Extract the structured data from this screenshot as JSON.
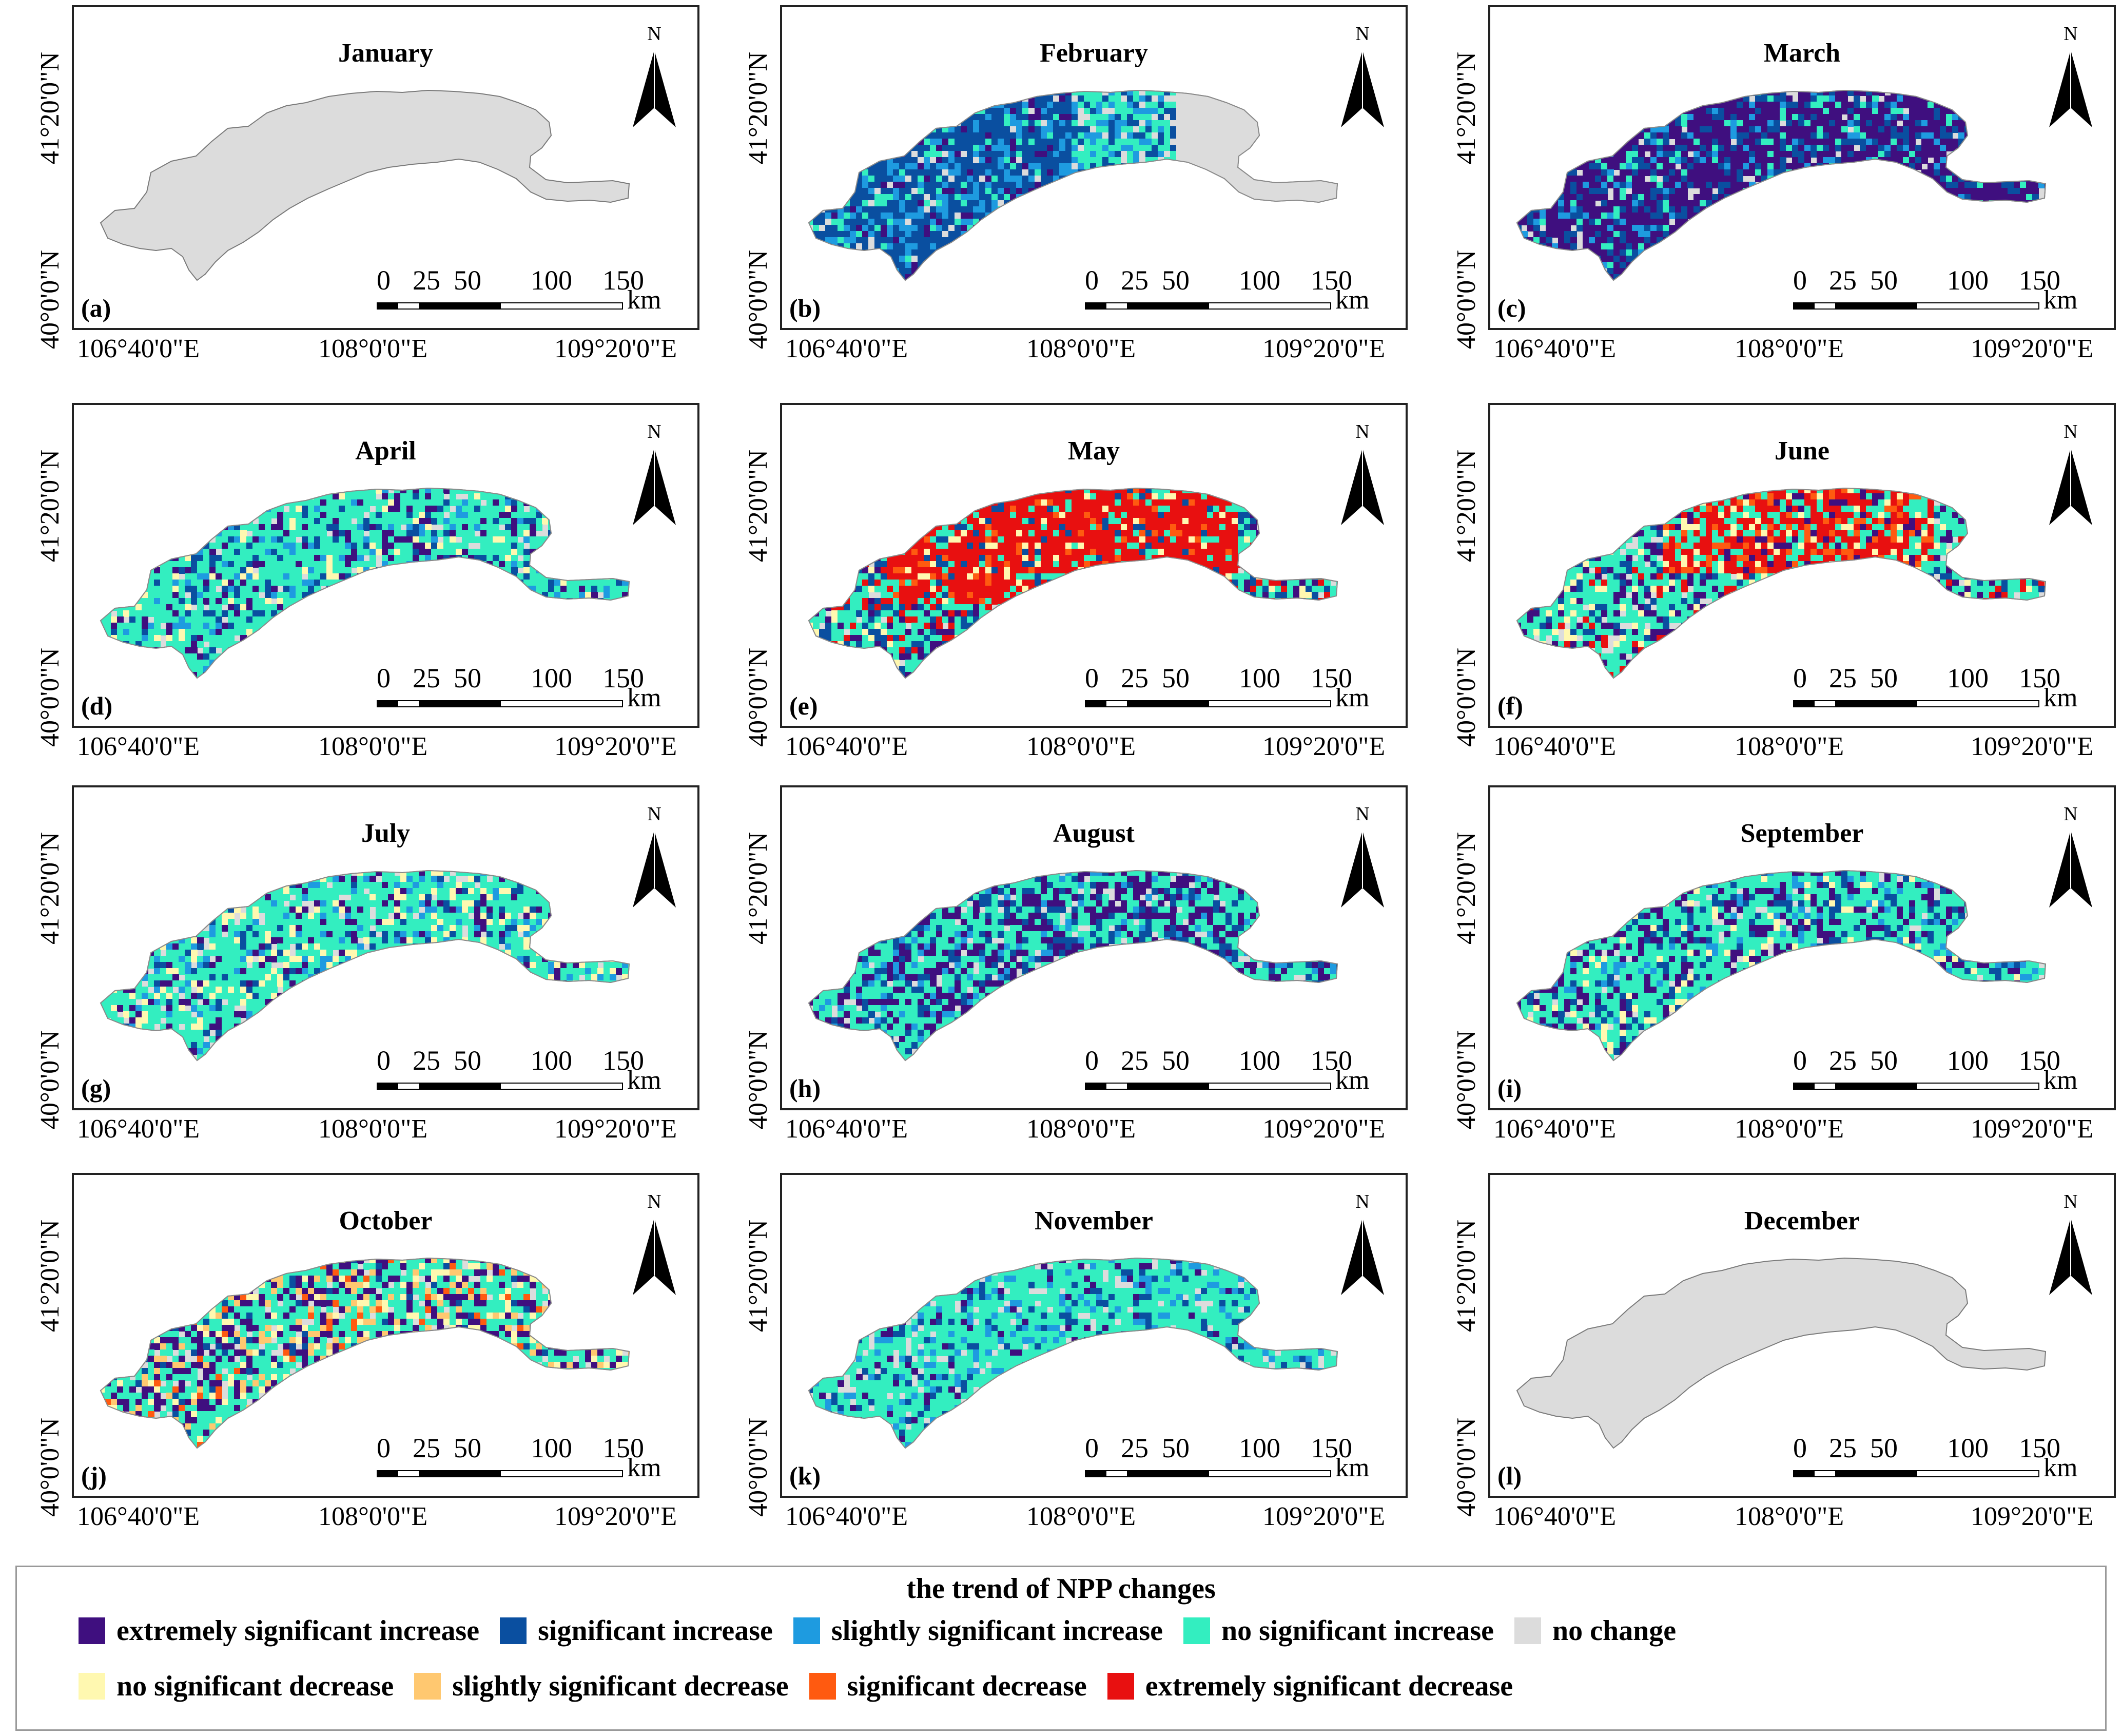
{
  "figure": {
    "legend_title": "the trend of NPP changes",
    "latitude_labels": [
      "41°20'0\"N",
      "40°0'0\"N"
    ],
    "longitude_labels": [
      "106°40'0\"E",
      "108°0'0\"E",
      "109°20'0\"E"
    ],
    "north_label": "N",
    "scale": {
      "ticks": [
        "0",
        "25",
        "50",
        "100",
        "150"
      ],
      "unit": "km"
    }
  },
  "categories": [
    {
      "id": "esi",
      "label": "extremely significant increase",
      "color": "#3f0f7f"
    },
    {
      "id": "si",
      "label": "significant increase",
      "color": "#0a4fa0"
    },
    {
      "id": "ssi",
      "label": "slightly significant increase",
      "color": "#1e9be0"
    },
    {
      "id": "nsi",
      "label": "no significant increase",
      "color": "#33eec0"
    },
    {
      "id": "nc",
      "label": "no change",
      "color": "#dcdcdc"
    },
    {
      "id": "nsd",
      "label": "no significant decrease",
      "color": "#fff8b0"
    },
    {
      "id": "ssd",
      "label": "slightly significant decrease",
      "color": "#ffc870"
    },
    {
      "id": "sd",
      "label": "significant decrease",
      "color": "#ff5a10"
    },
    {
      "id": "esd",
      "label": "extremely significant decrease",
      "color": "#e81010"
    }
  ],
  "panels": [
    {
      "letter": "(a)",
      "month": "January",
      "dominant": "no change"
    },
    {
      "letter": "(b)",
      "month": "February",
      "dominant": "significant increase (west), no change (east)"
    },
    {
      "letter": "(c)",
      "month": "March",
      "dominant": "extremely significant increase"
    },
    {
      "letter": "(d)",
      "month": "April",
      "dominant": "no significant increase"
    },
    {
      "letter": "(e)",
      "month": "May",
      "dominant": "extremely significant decrease"
    },
    {
      "letter": "(f)",
      "month": "June",
      "dominant": "no significant increase / extremely significant decrease"
    },
    {
      "letter": "(g)",
      "month": "July",
      "dominant": "no significant increase"
    },
    {
      "letter": "(h)",
      "month": "August",
      "dominant": "no significant increase / extremely significant increase"
    },
    {
      "letter": "(i)",
      "month": "September",
      "dominant": "no significant increase"
    },
    {
      "letter": "(j)",
      "month": "October",
      "dominant": "no significant increase / extremely significant increase"
    },
    {
      "letter": "(k)",
      "month": "November",
      "dominant": "no significant increase"
    },
    {
      "letter": "(l)",
      "month": "December",
      "dominant": "no change"
    }
  ]
}
